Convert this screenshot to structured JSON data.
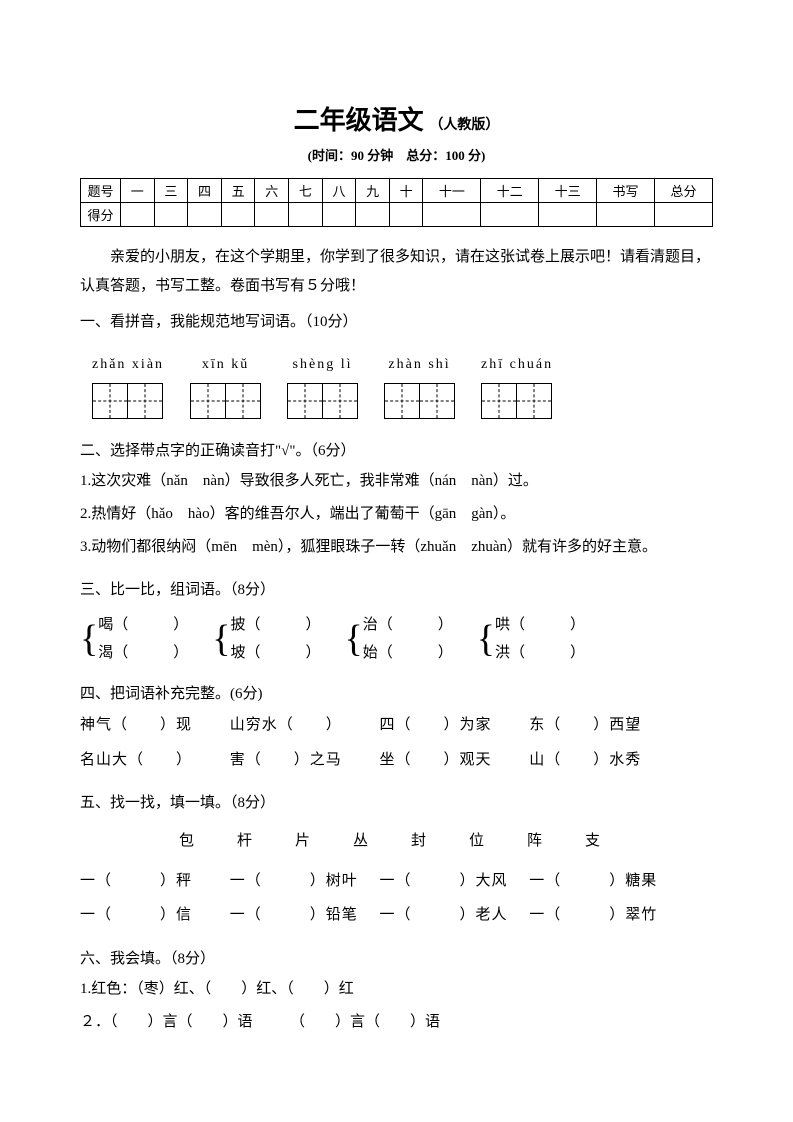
{
  "header": {
    "title": "二年级语文",
    "edition": "（人教版）",
    "time_score": "(时间：90 分钟　总分：100 分)"
  },
  "scoreTable": {
    "row1": [
      "题号",
      "一",
      "三",
      "四",
      "五",
      "六",
      "七",
      "八",
      "九",
      "十",
      "十一",
      "十二",
      "十三",
      "书写",
      "总分"
    ],
    "row2Label": "得分"
  },
  "intro": "亲爱的小朋友，在这个学期里，你学到了很多知识，请在这张试卷上展示吧！请看清题目，认真答题，书写工整。卷面书写有５分哦！",
  "sec1": {
    "head": "一、看拼音，我能规范地写词语。（10分）",
    "pinyins": [
      "zhǎn xiàn",
      "xīn kǔ",
      "shèng lì",
      "zhàn shì",
      "zhī chuán"
    ]
  },
  "sec2": {
    "head": "二、选择带点字的正确读音打\"√\"。（6分）",
    "i1": "1.这次灾难（nǎn　nàn）导致很多人死亡，我非常难（nán　nàn）过。",
    "i2": "2.热情好（hǎo　hào）客的维吾尔人，端出了葡萄干（gān　gàn）。",
    "i3": "3.动物们都很纳闷（mēn　mèn），狐狸眼珠子一转（zhuǎn　zhuàn）就有许多的好主意。"
  },
  "sec3": {
    "head": "三、比一比，组词语。（8分）",
    "pairs": [
      {
        "a": "喝（　　　）",
        "b": "渴（　　　）"
      },
      {
        "a": "披（　　　）",
        "b": "坡（　　　）"
      },
      {
        "a": "治（　　　）",
        "b": "始（　　　）"
      },
      {
        "a": "哄（　　　）",
        "b": "洪（　　　）"
      }
    ]
  },
  "sec4": {
    "head": "四、把词语补充完整。(6分)",
    "r1": {
      "a": "神气（　　）现",
      "b": "山穷水（　　）",
      "c": "四（　　）为家",
      "d": "东（　　）西望"
    },
    "r2": {
      "a": "名山大（　　）",
      "b": "害（　　）之马",
      "c": "坐（　　）观天",
      "d": "山（　　）水秀"
    }
  },
  "sec5": {
    "head": "五、找一找，填一填。（8分）",
    "chars": "包　杆　片　丛　封　位　阵　支",
    "r1": {
      "a": "一（　　　）秤",
      "b": "一（　　　）树叶",
      "c": "一（　　　）大风",
      "d": "一（　　　）糖果"
    },
    "r2": {
      "a": "一（　　　）信",
      "b": "一（　　　）铅笔",
      "c": "一（　　　）老人",
      "d": "一（　　　）翠竹"
    }
  },
  "sec6": {
    "head": "六、我会填。（8分）",
    "i1": "1.红色：（枣）红、（　　）红、（　　）红",
    "i2": "２．（　　）言（　　）语　　　（　　）言（　　）语"
  },
  "colors": {
    "text": "#000000",
    "bg": "#ffffff"
  }
}
